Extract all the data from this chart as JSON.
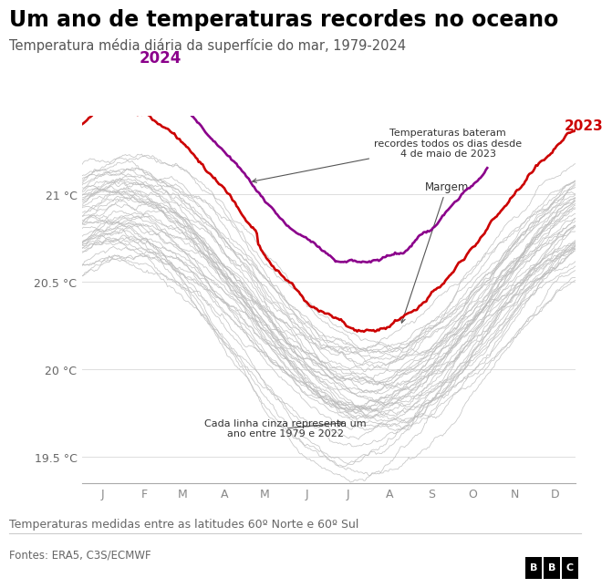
{
  "title": "Um ano de temperaturas recordes no oceano",
  "subtitle": "Temperatura média diária da superfície do mar, 1979-2024",
  "footer_note": "Temperaturas medidas entre as latitudes 60º Norte e 60º Sul",
  "source": "Fontes: ERA5, C3S/ECMWF",
  "yticks": [
    19.5,
    20.0,
    20.5,
    21.0
  ],
  "ylim": [
    19.35,
    21.45
  ],
  "months": [
    "J",
    "F",
    "M",
    "A",
    "M",
    "J",
    "J",
    "A",
    "S",
    "O",
    "N",
    "D"
  ],
  "annotation1_text": "Temperaturas bateram\nrecordes todos os dias desde\n4 de maio de 2023",
  "annotation2_text": "Margem",
  "annotation3_text": "Cada linha cinza representa um\nano entre 1979 e 2022",
  "label_2024": "2024",
  "label_2023": "2023",
  "color_2024": "#8B008B",
  "color_2023": "#CC0000",
  "color_gray": "#BBBBBB",
  "color_background": "#FFFFFF",
  "color_title": "#000000",
  "color_subtitle": "#555555",
  "color_annotation": "#333333",
  "color_grid": "#DDDDDD",
  "color_axis": "#AAAAAA"
}
